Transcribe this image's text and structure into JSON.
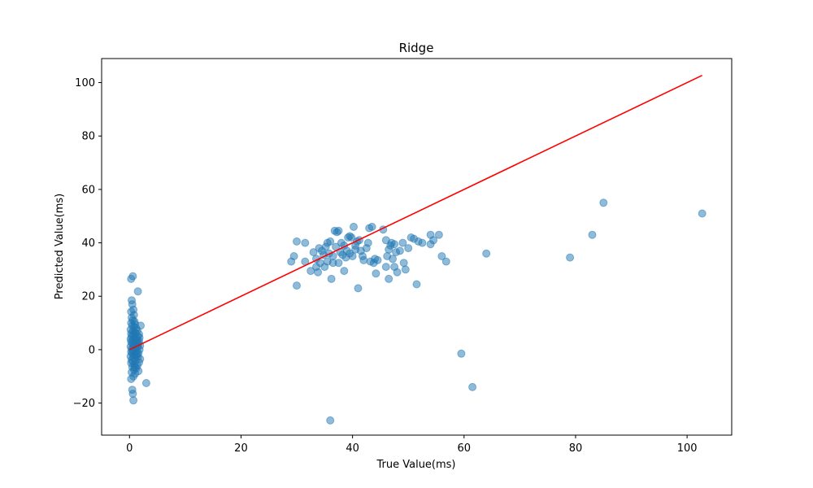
{
  "chart_data": {
    "type": "scatter",
    "title": "Ridge",
    "xlabel": "True Value(ms)",
    "ylabel": "Predicted Value(ms)",
    "xlim": [
      -5,
      108
    ],
    "ylim": [
      -32,
      109
    ],
    "xticks": [
      0,
      20,
      40,
      60,
      80,
      100
    ],
    "yticks": [
      -20,
      0,
      20,
      40,
      60,
      80,
      100
    ],
    "xtick_labels": [
      "0",
      "20",
      "40",
      "60",
      "80",
      "100"
    ],
    "ytick_labels": [
      "−20",
      "0",
      "20",
      "40",
      "60",
      "80",
      "100"
    ],
    "grid": false,
    "point_color": "#1f77b4",
    "line_color": "#ff0000",
    "reference_line": {
      "x": [
        0,
        102.7
      ],
      "y": [
        0,
        102.7
      ]
    },
    "points": [
      [
        0.6,
        27.5
      ],
      [
        0.3,
        26.5
      ],
      [
        0.4,
        18.5
      ],
      [
        0.5,
        17.0
      ],
      [
        0.7,
        15.0
      ],
      [
        0.3,
        14.2
      ],
      [
        0.8,
        13.0
      ],
      [
        0.4,
        12.0
      ],
      [
        0.6,
        11.0
      ],
      [
        0.9,
        10.5
      ],
      [
        0.3,
        10.0
      ],
      [
        1.0,
        9.5
      ],
      [
        0.5,
        9.0
      ],
      [
        0.8,
        8.5
      ],
      [
        1.2,
        8.0
      ],
      [
        0.2,
        7.5
      ],
      [
        0.6,
        7.0
      ],
      [
        1.4,
        7.2
      ],
      [
        0.9,
        6.5
      ],
      [
        0.3,
        6.0
      ],
      [
        1.1,
        6.2
      ],
      [
        0.7,
        5.5
      ],
      [
        1.5,
        5.0
      ],
      [
        0.4,
        5.0
      ],
      [
        1.8,
        4.5
      ],
      [
        0.2,
        4.0
      ],
      [
        1.0,
        4.2
      ],
      [
        1.3,
        3.8
      ],
      [
        0.6,
        3.5
      ],
      [
        1.7,
        3.2
      ],
      [
        0.3,
        3.0
      ],
      [
        0.9,
        2.8
      ],
      [
        1.6,
        2.5
      ],
      [
        0.5,
        2.2
      ],
      [
        1.2,
        2.0
      ],
      [
        0.8,
        1.8
      ],
      [
        1.9,
        1.5
      ],
      [
        0.2,
        1.2
      ],
      [
        1.4,
        1.0
      ],
      [
        0.7,
        0.8
      ],
      [
        1.1,
        0.5
      ],
      [
        0.4,
        0.2
      ],
      [
        1.8,
        0.0
      ],
      [
        0.6,
        -0.3
      ],
      [
        1.3,
        -0.5
      ],
      [
        0.3,
        -0.8
      ],
      [
        1.0,
        -1.0
      ],
      [
        1.6,
        -1.3
      ],
      [
        0.5,
        -1.5
      ],
      [
        0.8,
        -2.0
      ],
      [
        1.2,
        -2.3
      ],
      [
        0.2,
        -2.5
      ],
      [
        1.5,
        -2.8
      ],
      [
        0.7,
        -3.0
      ],
      [
        1.9,
        -3.5
      ],
      [
        0.4,
        -3.8
      ],
      [
        1.1,
        -4.0
      ],
      [
        0.6,
        -4.5
      ],
      [
        1.7,
        -4.8
      ],
      [
        0.3,
        -5.0
      ],
      [
        0.9,
        -5.5
      ],
      [
        1.4,
        -6.0
      ],
      [
        0.5,
        -6.5
      ],
      [
        1.2,
        -7.0
      ],
      [
        0.8,
        -7.5
      ],
      [
        1.6,
        -8.0
      ],
      [
        0.4,
        -8.5
      ],
      [
        1.0,
        -9.0
      ],
      [
        0.7,
        -10.0
      ],
      [
        0.3,
        -11.0
      ],
      [
        0.5,
        -15.0
      ],
      [
        0.6,
        -16.5
      ],
      [
        0.7,
        -19.0
      ],
      [
        1.5,
        21.8
      ],
      [
        2.0,
        9.0
      ],
      [
        3.0,
        -12.5
      ],
      [
        1.3,
        3.0
      ],
      [
        1.5,
        1.5
      ],
      [
        0.9,
        -6.5
      ],
      [
        1.7,
        5.8
      ],
      [
        1.4,
        -1.8
      ],
      [
        29.0,
        33.0
      ],
      [
        29.5,
        35.0
      ],
      [
        30.0,
        40.5
      ],
      [
        30.0,
        24.0
      ],
      [
        31.5,
        40.0
      ],
      [
        31.5,
        33.0
      ],
      [
        32.5,
        29.5
      ],
      [
        33.0,
        36.5
      ],
      [
        33.5,
        34.0
      ],
      [
        33.5,
        31.0
      ],
      [
        33.8,
        29.0
      ],
      [
        34.0,
        38.0
      ],
      [
        34.2,
        32.5
      ],
      [
        34.5,
        37.0
      ],
      [
        34.8,
        35.5
      ],
      [
        35.0,
        31.0
      ],
      [
        35.2,
        38.5
      ],
      [
        35.5,
        40.0
      ],
      [
        35.5,
        33.0
      ],
      [
        35.8,
        36.0
      ],
      [
        36.0,
        40.5
      ],
      [
        36.2,
        26.5
      ],
      [
        36.5,
        32.5
      ],
      [
        36.5,
        35.0
      ],
      [
        36.8,
        44.5
      ],
      [
        37.0,
        38.5
      ],
      [
        37.2,
        44.0
      ],
      [
        37.5,
        44.5
      ],
      [
        37.5,
        32.5
      ],
      [
        37.8,
        36.5
      ],
      [
        38.0,
        40.0
      ],
      [
        38.2,
        35.5
      ],
      [
        38.5,
        29.5
      ],
      [
        38.5,
        39.0
      ],
      [
        38.8,
        34.5
      ],
      [
        39.0,
        37.0
      ],
      [
        39.2,
        42.0
      ],
      [
        39.5,
        42.5
      ],
      [
        39.5,
        36.0
      ],
      [
        39.8,
        42.0
      ],
      [
        40.0,
        35.0
      ],
      [
        40.2,
        46.0
      ],
      [
        40.5,
        37.5
      ],
      [
        40.5,
        39.0
      ],
      [
        40.8,
        40.5
      ],
      [
        41.0,
        23.0
      ],
      [
        41.2,
        41.0
      ],
      [
        41.5,
        37.0
      ],
      [
        41.8,
        35.0
      ],
      [
        42.0,
        33.5
      ],
      [
        42.5,
        38.0
      ],
      [
        42.8,
        40.0
      ],
      [
        43.0,
        45.5
      ],
      [
        43.2,
        33.0
      ],
      [
        43.5,
        46.0
      ],
      [
        43.8,
        32.5
      ],
      [
        44.0,
        34.0
      ],
      [
        44.2,
        28.5
      ],
      [
        44.5,
        33.5
      ],
      [
        45.5,
        45.0
      ],
      [
        46.0,
        41.0
      ],
      [
        46.0,
        31.0
      ],
      [
        46.2,
        35.0
      ],
      [
        46.5,
        26.5
      ],
      [
        46.5,
        37.5
      ],
      [
        46.8,
        39.0
      ],
      [
        47.0,
        40.0
      ],
      [
        47.2,
        34.0
      ],
      [
        47.5,
        39.5
      ],
      [
        47.5,
        31.0
      ],
      [
        47.8,
        36.5
      ],
      [
        48.0,
        29.0
      ],
      [
        48.5,
        37.0
      ],
      [
        49.0,
        40.0
      ],
      [
        49.2,
        32.5
      ],
      [
        49.5,
        30.0
      ],
      [
        50.0,
        38.0
      ],
      [
        50.5,
        42.0
      ],
      [
        51.0,
        41.5
      ],
      [
        51.5,
        24.5
      ],
      [
        51.8,
        40.5
      ],
      [
        52.5,
        40.0
      ],
      [
        54.0,
        43.0
      ],
      [
        54.0,
        39.5
      ],
      [
        54.5,
        41.0
      ],
      [
        55.5,
        43.0
      ],
      [
        56.0,
        35.0
      ],
      [
        56.8,
        33.0
      ],
      [
        59.5,
        -1.5
      ],
      [
        61.5,
        -14.0
      ],
      [
        64.0,
        36.0
      ],
      [
        79.0,
        34.5
      ],
      [
        83.0,
        43.0
      ],
      [
        85.0,
        55.0
      ],
      [
        102.7,
        51.0
      ],
      [
        36.0,
        -26.5
      ]
    ]
  }
}
